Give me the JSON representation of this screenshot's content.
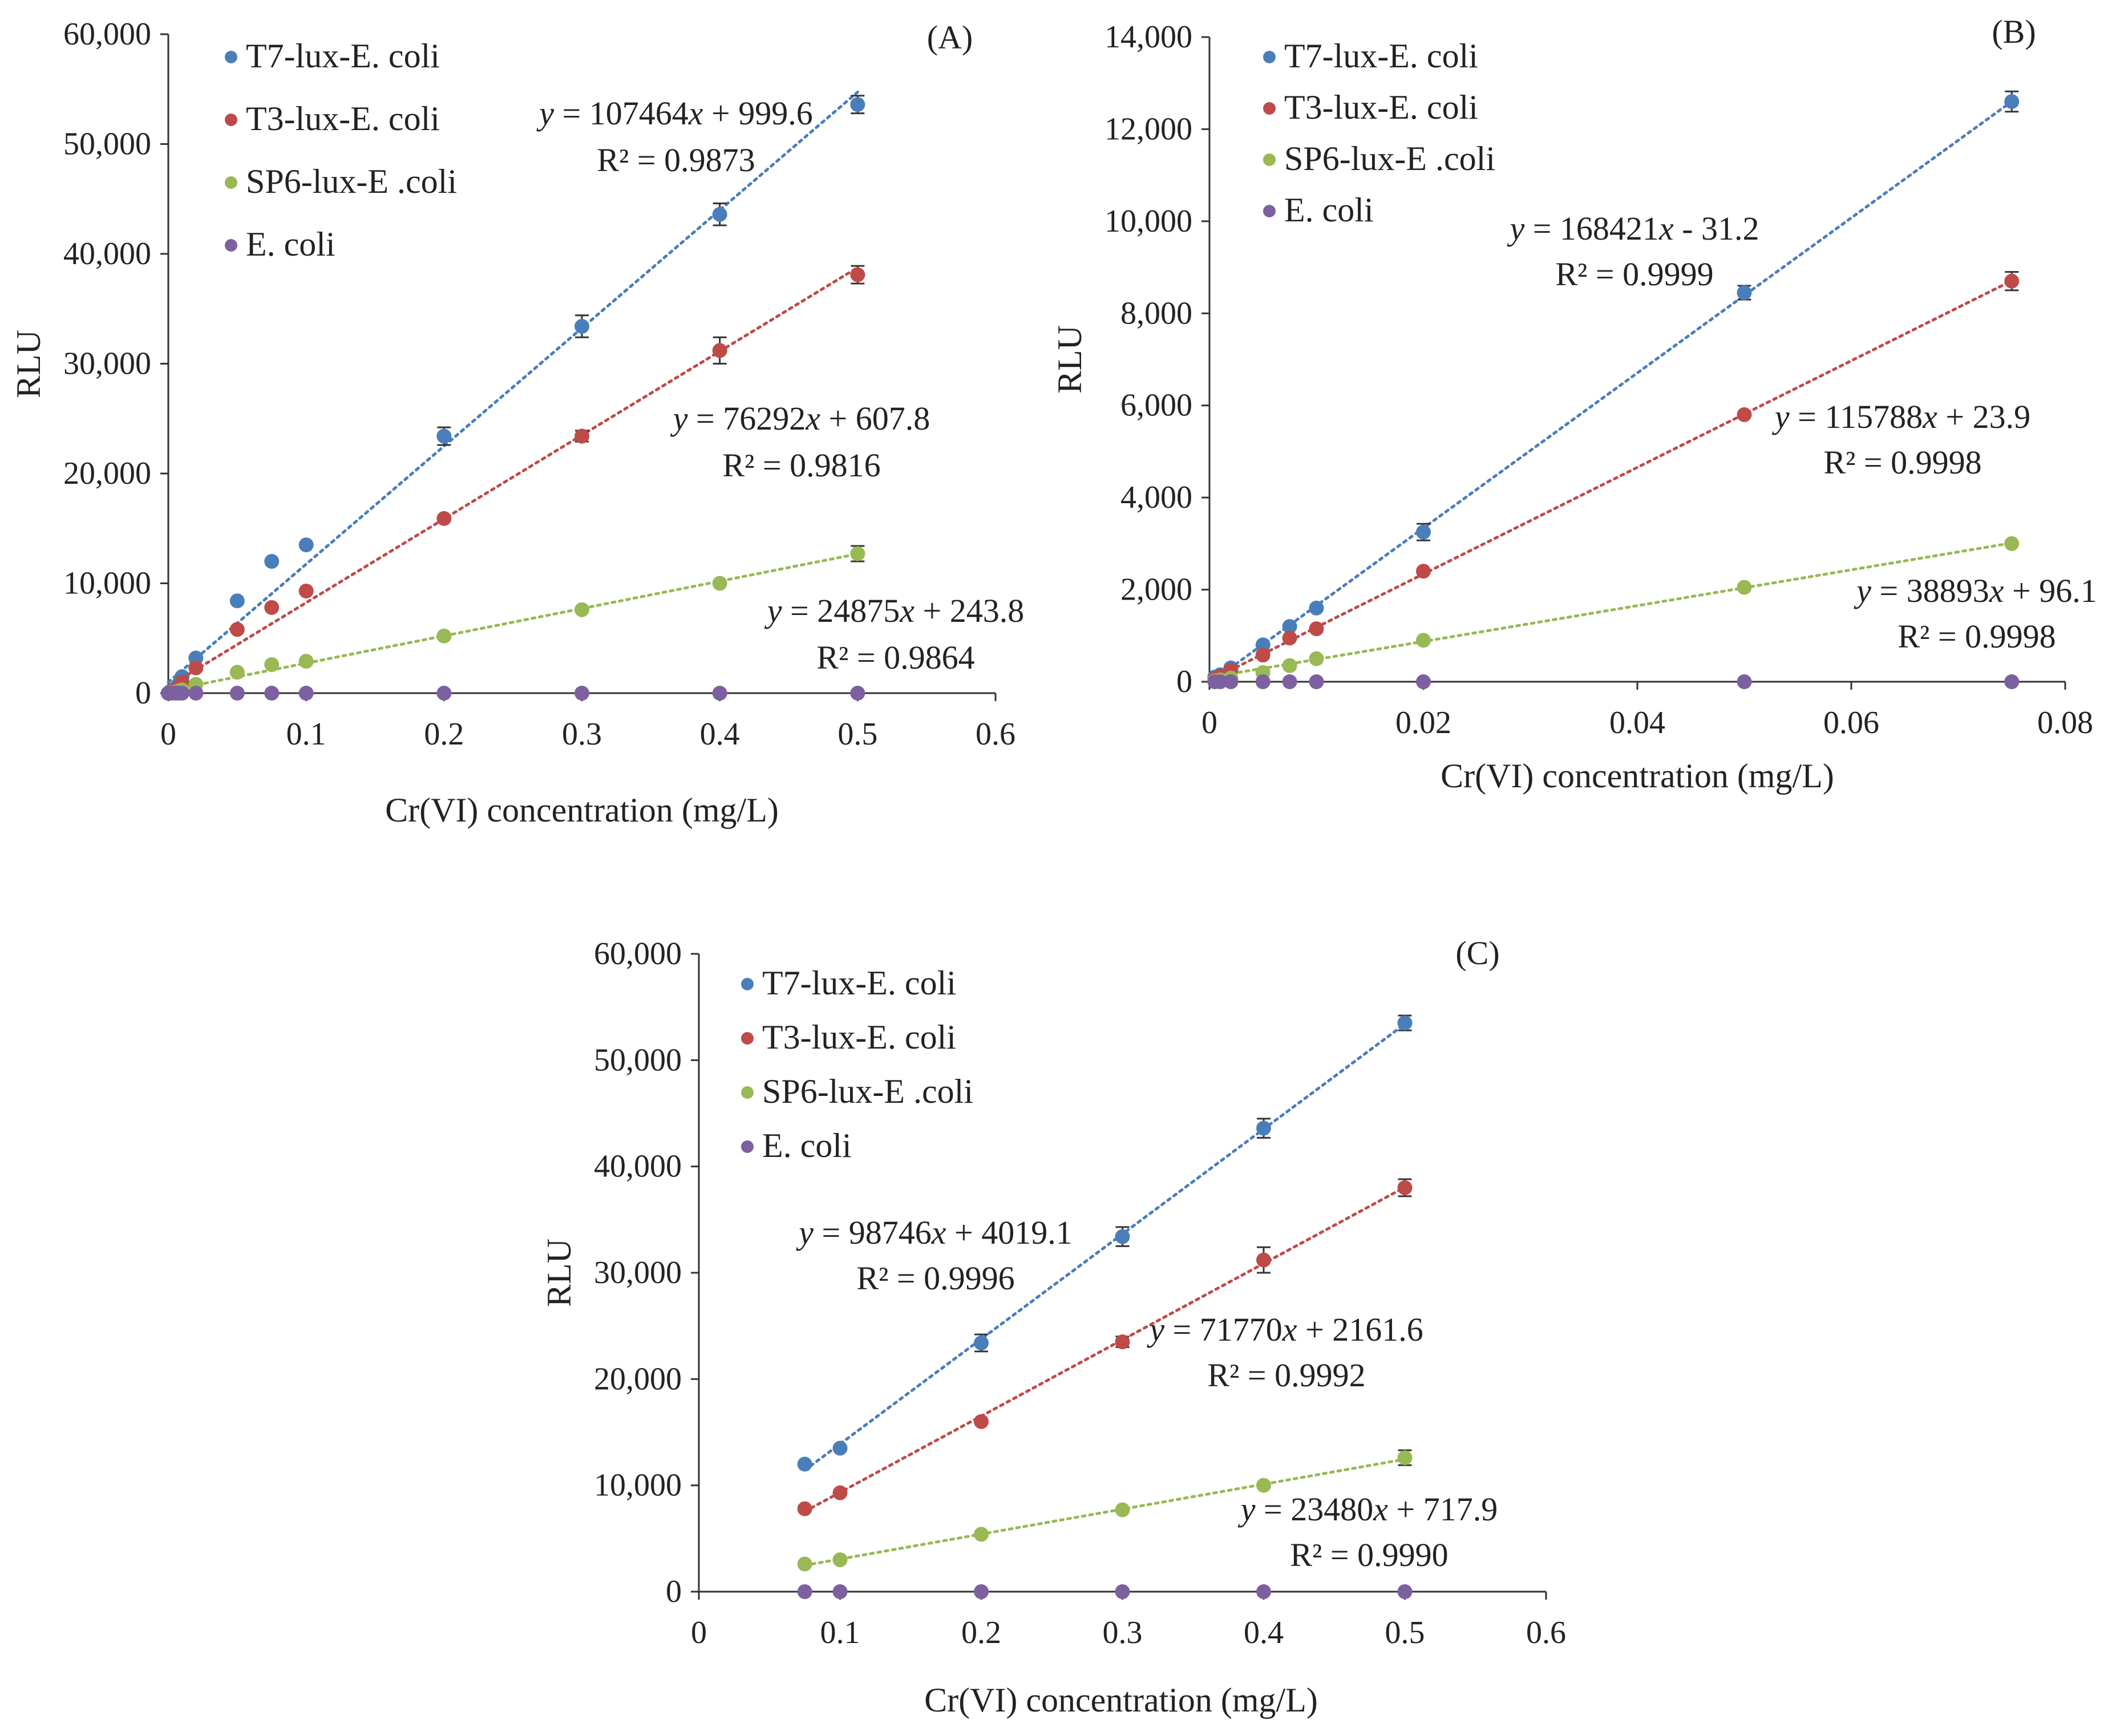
{
  "figure": {
    "colors": {
      "T7-lux-E. coli": "#4a7ebb",
      "T3-lux-E. coli": "#be4b48",
      "SP6-lux-E .coli": "#98b954",
      "E. coli": "#7d60a0",
      "axis": "#333333",
      "errorbar": "#333333"
    }
  },
  "chart_data": [
    {
      "type": "scatter",
      "panel_label": "(A)",
      "xlabel": "Cr(VI) concentration (mg/L)",
      "ylabel": "RLU",
      "xlim": [
        0,
        0.6
      ],
      "ylim": [
        0,
        60000
      ],
      "x_ticks": [
        "0",
        "0.1",
        "0.2",
        "0.3",
        "0.4",
        "0.5",
        "0.6"
      ],
      "x_tick_values": [
        0,
        0.1,
        0.2,
        0.3,
        0.4,
        0.5,
        0.6
      ],
      "y_ticks": [
        "0",
        "10,000",
        "20,000",
        "30,000",
        "40,000",
        "50,000",
        "60,000"
      ],
      "y_tick_values": [
        0,
        10000,
        20000,
        30000,
        40000,
        50000,
        60000
      ],
      "grid": false,
      "legend_position": "top-left",
      "series": [
        {
          "name": "T7-lux-E. coli",
          "x": [
            0,
            0.001,
            0.002,
            0.005,
            0.0075,
            0.01,
            0.02,
            0.05,
            0.075,
            0.1,
            0.2,
            0.3,
            0.4,
            0.5
          ],
          "y": [
            0,
            100,
            200,
            450,
            800,
            1500,
            3200,
            8400,
            12000,
            13500,
            23400,
            33400,
            43600,
            53600
          ],
          "err": [
            0,
            0,
            0,
            0,
            0,
            0,
            0,
            0,
            0,
            0,
            800,
            1000,
            1000,
            800
          ],
          "trendline": {
            "slope": 107464,
            "intercept": 999.6,
            "x_range": [
              0,
              0.5
            ]
          },
          "equation": "= 107464x + 999.6",
          "r2": "R² = 0.9873"
        },
        {
          "name": "T3-lux-E. coli",
          "x": [
            0,
            0.001,
            0.002,
            0.005,
            0.0075,
            0.01,
            0.02,
            0.05,
            0.075,
            0.1,
            0.2,
            0.3,
            0.4,
            0.5
          ],
          "y": [
            0,
            80,
            150,
            300,
            550,
            1000,
            2300,
            5800,
            7800,
            9300,
            15900,
            23400,
            31200,
            38100
          ],
          "err": [
            0,
            0,
            0,
            0,
            0,
            0,
            0,
            0,
            0,
            0,
            0,
            500,
            1200,
            800
          ],
          "trendline": {
            "slope": 76292,
            "intercept": 607.8,
            "x_range": [
              0,
              0.5
            ]
          },
          "equation": "= 76292x + 607.8",
          "r2": "R² = 0.9816"
        },
        {
          "name": "SP6-lux-E .coli",
          "x": [
            0,
            0.001,
            0.002,
            0.005,
            0.0075,
            0.01,
            0.02,
            0.05,
            0.075,
            0.1,
            0.2,
            0.3,
            0.4,
            0.5
          ],
          "y": [
            0,
            30,
            50,
            100,
            200,
            300,
            800,
            1900,
            2600,
            2900,
            5200,
            7600,
            10000,
            12700
          ],
          "err": [
            0,
            0,
            0,
            0,
            0,
            0,
            0,
            0,
            0,
            0,
            0,
            0,
            0,
            700
          ],
          "trendline": {
            "slope": 24875,
            "intercept": 243.8,
            "x_range": [
              0,
              0.5
            ]
          },
          "equation": "= 24875x + 243.8",
          "r2": "R² = 0.9864"
        },
        {
          "name": "E. coli",
          "x": [
            0,
            0.001,
            0.002,
            0.005,
            0.0075,
            0.01,
            0.02,
            0.05,
            0.075,
            0.1,
            0.2,
            0.3,
            0.4,
            0.5
          ],
          "y": [
            0,
            0,
            0,
            0,
            0,
            0,
            0,
            0,
            0,
            0,
            0,
            0,
            0,
            0
          ],
          "err": [
            0,
            0,
            0,
            0,
            0,
            0,
            0,
            0,
            0,
            0,
            0,
            0,
            0,
            0
          ]
        }
      ]
    },
    {
      "type": "scatter",
      "panel_label": "(B)",
      "xlabel": "Cr(VI) concentration (mg/L)",
      "ylabel": "RLU",
      "xlim": [
        0,
        0.08
      ],
      "ylim": [
        0,
        14000
      ],
      "x_ticks": [
        "0",
        "0.02",
        "0.04",
        "0.06",
        "0.08"
      ],
      "x_tick_values": [
        0,
        0.02,
        0.04,
        0.06,
        0.08
      ],
      "y_ticks": [
        "0",
        "2,000",
        "4,000",
        "6,000",
        "8,000",
        "10,000",
        "12,000",
        "14,000"
      ],
      "y_tick_values": [
        0,
        2000,
        4000,
        6000,
        8000,
        10000,
        12000,
        14000
      ],
      "grid": false,
      "legend_position": "top-left",
      "series": [
        {
          "name": "T7-lux-E. coli",
          "x": [
            0.0005,
            0.001,
            0.002,
            0.005,
            0.0075,
            0.01,
            0.02,
            0.05,
            0.075
          ],
          "y": [
            100,
            150,
            300,
            800,
            1200,
            1600,
            3250,
            8450,
            12600
          ],
          "err": [
            0,
            0,
            0,
            0,
            0,
            0,
            180,
            150,
            220
          ],
          "trendline": {
            "slope": 168421,
            "intercept": -31.2,
            "x_range": [
              0.0002,
              0.075
            ]
          },
          "equation": "= 168421x - 31.2",
          "r2": "R² = 0.9999"
        },
        {
          "name": "T3-lux-E. coli",
          "x": [
            0.0005,
            0.001,
            0.002,
            0.005,
            0.0075,
            0.01,
            0.02,
            0.05,
            0.075
          ],
          "y": [
            60,
            120,
            250,
            580,
            950,
            1150,
            2400,
            5800,
            8700
          ],
          "err": [
            0,
            0,
            0,
            0,
            0,
            0,
            0,
            0,
            200
          ],
          "trendline": {
            "slope": 115788,
            "intercept": 23.9,
            "x_range": [
              0,
              0.075
            ]
          },
          "equation": "= 115788x + 23.9",
          "r2": "R² = 0.9998"
        },
        {
          "name": "SP6-lux-E .coli",
          "x": [
            0.0005,
            0.001,
            0.002,
            0.005,
            0.0075,
            0.01,
            0.02,
            0.05,
            0.075
          ],
          "y": [
            20,
            40,
            80,
            200,
            350,
            500,
            900,
            2050,
            3000
          ],
          "err": [
            0,
            0,
            0,
            0,
            0,
            0,
            0,
            0,
            0
          ],
          "trendline": {
            "slope": 38893,
            "intercept": 96.1,
            "x_range": [
              0,
              0.075
            ]
          },
          "equation": "= 38893x + 96.1",
          "r2": "R² = 0.9998"
        },
        {
          "name": "E. coli",
          "x": [
            0.0005,
            0.001,
            0.002,
            0.005,
            0.0075,
            0.01,
            0.02,
            0.05,
            0.075
          ],
          "y": [
            0,
            0,
            0,
            0,
            0,
            0,
            0,
            0,
            0
          ],
          "err": [
            0,
            0,
            0,
            0,
            0,
            0,
            0,
            0,
            0
          ]
        }
      ]
    },
    {
      "type": "scatter",
      "panel_label": "(C)",
      "xlabel": "Cr(VI) concentration (mg/L)",
      "ylabel": "RLU",
      "xlim": [
        0,
        0.6
      ],
      "ylim": [
        0,
        60000
      ],
      "x_ticks": [
        "0",
        "0.1",
        "0.2",
        "0.3",
        "0.4",
        "0.5",
        "0.6"
      ],
      "x_tick_values": [
        0,
        0.1,
        0.2,
        0.3,
        0.4,
        0.5,
        0.6
      ],
      "y_ticks": [
        "0",
        "10,000",
        "20,000",
        "30,000",
        "40,000",
        "50,000",
        "60,000"
      ],
      "y_tick_values": [
        0,
        10000,
        20000,
        30000,
        40000,
        50000,
        60000
      ],
      "grid": false,
      "legend_position": "top-left",
      "series": [
        {
          "name": "T7-lux-E. coli",
          "x": [
            0.075,
            0.1,
            0.2,
            0.3,
            0.4,
            0.5
          ],
          "y": [
            12000,
            13500,
            23400,
            33400,
            43600,
            53500
          ],
          "err": [
            0,
            0,
            800,
            900,
            900,
            700
          ],
          "trendline": {
            "slope": 98746,
            "intercept": 4019.1,
            "x_range": [
              0.075,
              0.5
            ]
          },
          "equation": "= 98746x + 4019.1",
          "r2": "R² = 0.9996"
        },
        {
          "name": "T3-lux-E. coli",
          "x": [
            0.075,
            0.1,
            0.2,
            0.3,
            0.4,
            0.5
          ],
          "y": [
            7800,
            9300,
            16000,
            23500,
            31200,
            38000
          ],
          "err": [
            0,
            0,
            0,
            500,
            1200,
            800
          ],
          "trendline": {
            "slope": 71770,
            "intercept": 2161.6,
            "x_range": [
              0.075,
              0.5
            ]
          },
          "equation": "= 71770x + 2161.6",
          "r2": "R² = 0.9992"
        },
        {
          "name": "SP6-lux-E .coli",
          "x": [
            0.075,
            0.1,
            0.2,
            0.3,
            0.4,
            0.5
          ],
          "y": [
            2600,
            3000,
            5400,
            7700,
            10000,
            12600
          ],
          "err": [
            0,
            0,
            0,
            0,
            0,
            700
          ],
          "trendline": {
            "slope": 23480,
            "intercept": 717.9,
            "x_range": [
              0.075,
              0.5
            ]
          },
          "equation": "= 23480x + 717.9",
          "r2": "R² = 0.9990"
        },
        {
          "name": "E. coli",
          "x": [
            0.075,
            0.1,
            0.2,
            0.3,
            0.4,
            0.5
          ],
          "y": [
            0,
            0,
            0,
            0,
            0,
            0
          ],
          "err": [
            0,
            0,
            0,
            0,
            0,
            0
          ]
        }
      ]
    }
  ]
}
